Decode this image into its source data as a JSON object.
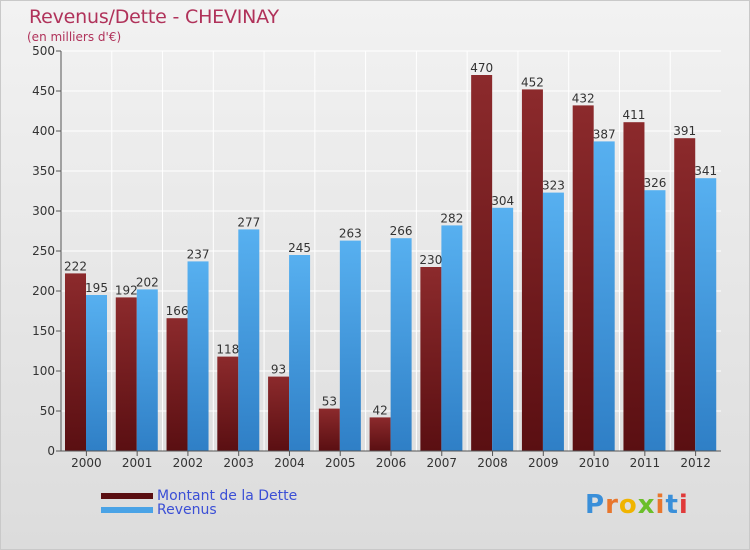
{
  "title": "Revenus/Dette - CHEVINAY",
  "subtitle": "(en milliers d'€)",
  "logo": "Proxiti",
  "colors": {
    "dette": "#7a1e20",
    "revenus": "#4aa3e6",
    "grid": "#ffffff"
  },
  "chart_data": {
    "type": "bar",
    "categories": [
      "2000",
      "2001",
      "2002",
      "2003",
      "2004",
      "2005",
      "2006",
      "2007",
      "2008",
      "2009",
      "2010",
      "2011",
      "2012"
    ],
    "series": [
      {
        "name": "Montant de la Dette",
        "values": [
          222,
          192,
          166,
          118,
          93,
          53,
          42,
          230,
          470,
          452,
          432,
          411,
          391
        ]
      },
      {
        "name": "Revenus",
        "values": [
          195,
          202,
          237,
          277,
          245,
          263,
          266,
          282,
          304,
          323,
          387,
          326,
          341
        ]
      }
    ],
    "ylim": [
      0,
      500
    ],
    "yticks": [
      0,
      50,
      100,
      150,
      200,
      250,
      300,
      350,
      400,
      450,
      500
    ],
    "legend_position": "bottom-left",
    "grid": true
  }
}
